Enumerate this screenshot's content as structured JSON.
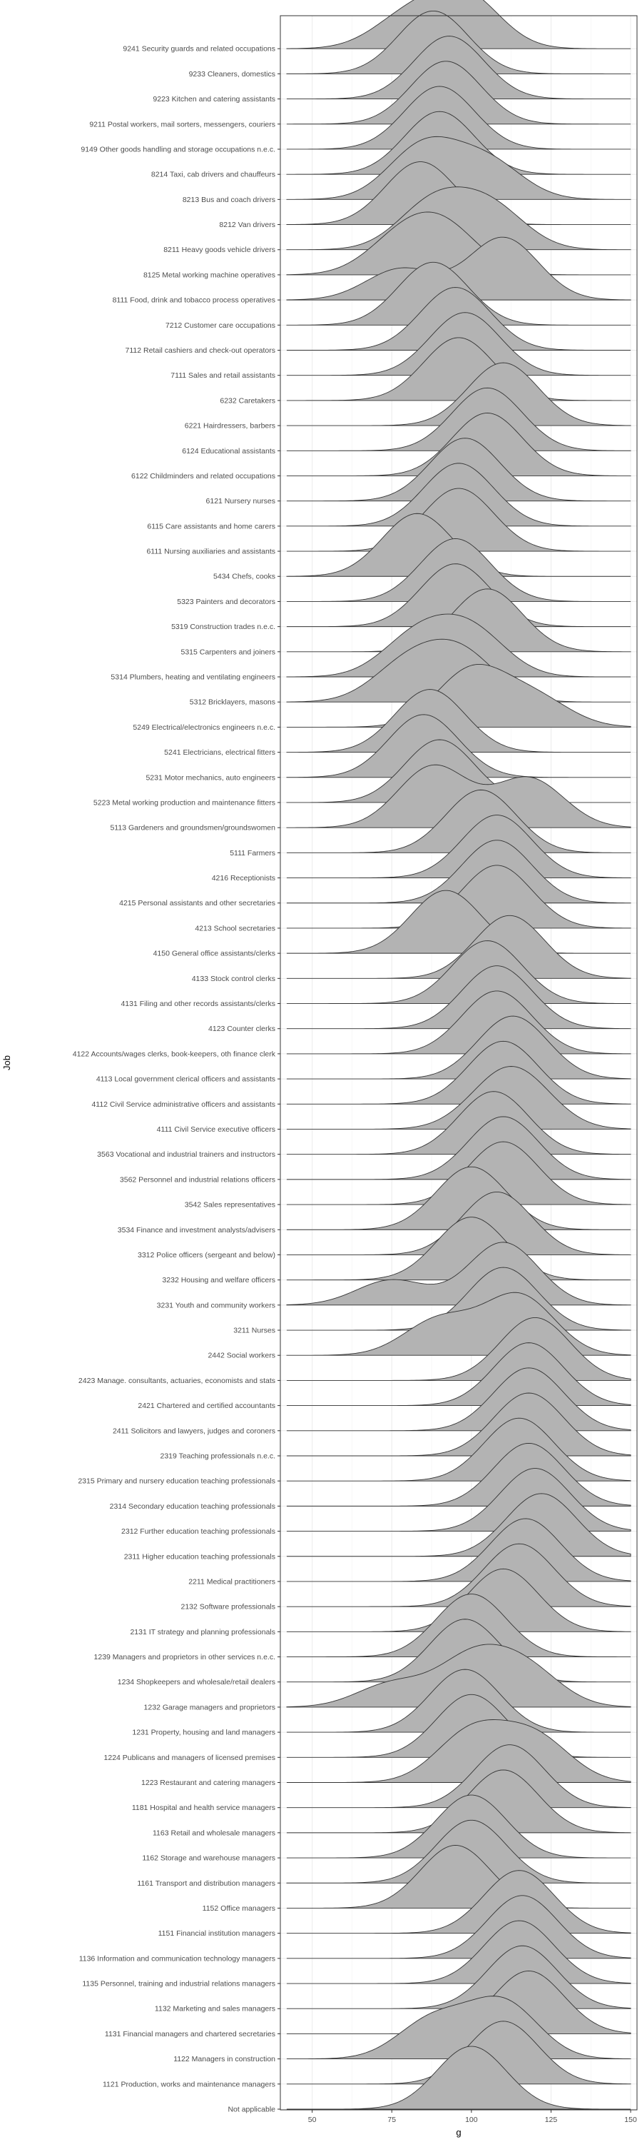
{
  "chart_data": {
    "type": "ridgeline",
    "xlabel": "g",
    "ylabel": "Job",
    "xlim": [
      40,
      152
    ],
    "x_ticks": [
      50,
      75,
      100,
      125,
      150
    ],
    "grid": true,
    "fill_color": "#b3b3b3",
    "line_color": "#333333",
    "categories": [
      "9241 Security guards and related occupations",
      "9233 Cleaners, domestics",
      "9223 Kitchen and catering assistants",
      "9211 Postal workers, mail sorters, messengers, couriers",
      "9149 Other goods handling and storage occupations n.e.c.",
      "8214 Taxi, cab drivers and chauffeurs",
      "8213 Bus and coach drivers",
      "8212 Van drivers",
      "8211 Heavy goods vehicle drivers",
      "8125 Metal working machine operatives",
      "8111 Food, drink and tobacco process operatives",
      "7212 Customer care occupations",
      "7112 Retail cashiers and check-out operators",
      "7111 Sales and retail assistants",
      "6232 Caretakers",
      "6221 Hairdressers, barbers",
      "6124 Educational assistants",
      "6122 Childminders and related occupations",
      "6121 Nursery nurses",
      "6115 Care assistants and home carers",
      "6111 Nursing auxiliaries and assistants",
      "5434 Chefs, cooks",
      "5323 Painters and decorators",
      "5319 Construction trades n.e.c.",
      "5315 Carpenters and joiners",
      "5314 Plumbers, heating and ventilating engineers",
      "5312 Bricklayers, masons",
      "5249 Electrical/electronics engineers n.e.c.",
      "5241 Electricians, electrical fitters",
      "5231 Motor mechanics, auto engineers",
      "5223 Metal working production and maintenance fitters",
      "5113 Gardeners and groundsmen/groundswomen",
      "5111 Farmers",
      "4216 Receptionists",
      "4215 Personal assistants and other secretaries",
      "4213 School secretaries",
      "4150 General office assistants/clerks",
      "4133 Stock control clerks",
      "4131 Filing and other records assistants/clerks",
      "4123 Counter clerks",
      "4122 Accounts/wages clerks, book-keepers, oth finance clerk",
      "4113 Local government clerical officers and assistants",
      "4112 Civil Service administrative officers and assistants",
      "4111 Civil Service executive officers",
      "3563 Vocational and industrial trainers and instructors",
      "3562 Personnel and industrial relations officers",
      "3542 Sales representatives",
      "3534 Finance and investment analysts/advisers",
      "3312 Police officers (sergeant and below)",
      "3232 Housing and welfare officers",
      "3231 Youth and community workers",
      "3211 Nurses",
      "2442 Social workers",
      "2423 Manage. consultants, actuaries, economists and stats",
      "2421 Chartered and certified accountants",
      "2411 Solicitors and lawyers, judges and coroners",
      "2319 Teaching professionals n.e.c.",
      "2315 Primary and nursery education teaching professionals",
      "2314 Secondary education teaching  professionals",
      "2312 Further education teaching professionals",
      "2311 Higher education teaching professionals",
      "2211 Medical practitioners",
      "2132 Software professionals",
      "2131 IT strategy and planning professionals",
      "1239 Managers and proprietors in other services n.e.c.",
      "1234 Shopkeepers and wholesale/retail dealers",
      "1232 Garage managers and proprietors",
      "1231 Property, housing and land managers",
      "1224 Publicans and managers of licensed premises",
      "1223 Restaurant and catering managers",
      "1181 Hospital and health service managers",
      "1163 Retail and wholesale managers",
      "1162 Storage and warehouse managers",
      "1161 Transport and distribution managers",
      "1152 Office managers",
      "1151 Financial institution managers",
      "1136 Information and communication technology managers",
      "1135 Personnel, training and industrial relations managers",
      "1132 Marketing and sales managers",
      "1131 Financial managers and chartered secretaries",
      "1122 Managers in construction",
      "1121 Production, works and maintenance managers",
      "Not applicable"
    ],
    "densities": [
      [
        [
          80,
          0.6
        ],
        [
          98,
          1.0
        ]
      ],
      [
        [
          88,
          1.0
        ]
      ],
      [
        [
          93,
          1.0
        ]
      ],
      [
        [
          92,
          1.0
        ]
      ],
      [
        [
          90,
          1.0
        ]
      ],
      [
        [
          90,
          1.0
        ]
      ],
      [
        [
          85,
          1.0
        ],
        [
          105,
          0.7
        ]
      ],
      [
        [
          84,
          1.0
        ]
      ],
      [
        [
          88,
          1.0
        ],
        [
          106,
          0.9
        ]
      ],
      [
        [
          78,
          0.8
        ],
        [
          92,
          1.0
        ]
      ],
      [
        [
          78,
          0.5
        ],
        [
          110,
          1.0
        ]
      ],
      [
        [
          88,
          1.0
        ]
      ],
      [
        [
          95,
          1.0
        ]
      ],
      [
        [
          98,
          1.0
        ]
      ],
      [
        [
          96,
          1.0
        ]
      ],
      [
        [
          110,
          1.0
        ]
      ],
      [
        [
          105,
          1.0
        ]
      ],
      [
        [
          105,
          1.0
        ]
      ],
      [
        [
          98,
          1.0
        ]
      ],
      [
        [
          96,
          1.0
        ]
      ],
      [
        [
          96,
          1.0
        ]
      ],
      [
        [
          83,
          1.0
        ]
      ],
      [
        [
          95,
          1.0
        ]
      ],
      [
        [
          95,
          1.0
        ]
      ],
      [
        [
          105,
          1.0
        ]
      ],
      [
        [
          83,
          0.9
        ],
        [
          100,
          1.0
        ]
      ],
      [
        [
          80,
          0.8
        ],
        [
          97,
          1.0
        ]
      ],
      [
        [
          100,
          1.0
        ],
        [
          120,
          0.5
        ]
      ],
      [
        [
          87,
          1.0
        ]
      ],
      [
        [
          85,
          1.0
        ]
      ],
      [
        [
          90,
          1.0
        ]
      ],
      [
        [
          88,
          1.0
        ],
        [
          118,
          0.8
        ]
      ],
      [
        [
          103,
          1.0
        ]
      ],
      [
        [
          108,
          1.0
        ]
      ],
      [
        [
          108,
          1.0
        ]
      ],
      [
        [
          108,
          1.0
        ]
      ],
      [
        [
          92,
          1.0
        ]
      ],
      [
        [
          112,
          1.0
        ]
      ],
      [
        [
          105,
          1.0
        ]
      ],
      [
        [
          108,
          1.0
        ]
      ],
      [
        [
          108,
          1.0
        ]
      ],
      [
        [
          113,
          1.0
        ]
      ],
      [
        [
          110,
          1.0
        ]
      ],
      [
        [
          108,
          0.8
        ],
        [
          116,
          1.0
        ]
      ],
      [
        [
          107,
          1.0
        ]
      ],
      [
        [
          110,
          1.0
        ]
      ],
      [
        [
          110,
          1.0
        ]
      ],
      [
        [
          100,
          1.0
        ]
      ],
      [
        [
          108,
          1.0
        ]
      ],
      [
        [
          100,
          1.0
        ]
      ],
      [
        [
          75,
          0.4
        ],
        [
          110,
          1.0
        ]
      ],
      [
        [
          110,
          1.0
        ]
      ],
      [
        [
          90,
          0.6
        ],
        [
          115,
          1.0
        ]
      ],
      [
        [
          120,
          1.0
        ]
      ],
      [
        [
          118,
          1.0
        ]
      ],
      [
        [
          118,
          1.0
        ]
      ],
      [
        [
          118,
          1.0
        ]
      ],
      [
        [
          115,
          1.0
        ]
      ],
      [
        [
          118,
          1.0
        ]
      ],
      [
        [
          120,
          1.0
        ]
      ],
      [
        [
          122,
          1.0
        ]
      ],
      [
        [
          117,
          1.0
        ]
      ],
      [
        [
          115,
          1.0
        ]
      ],
      [
        [
          110,
          1.0
        ]
      ],
      [
        [
          100,
          1.0
        ]
      ],
      [
        [
          98,
          1.0
        ]
      ],
      [
        [
          75,
          0.5
        ],
        [
          100,
          1.0
        ],
        [
          117,
          0.8
        ]
      ],
      [
        [
          98,
          1.0
        ]
      ],
      [
        [
          100,
          1.0
        ]
      ],
      [
        [
          100,
          0.9
        ],
        [
          120,
          0.8
        ]
      ],
      [
        [
          112,
          1.0
        ]
      ],
      [
        [
          110,
          1.0
        ]
      ],
      [
        [
          100,
          1.0
        ]
      ],
      [
        [
          100,
          1.0
        ]
      ],
      [
        [
          95,
          1.0
        ]
      ],
      [
        [
          115,
          1.0
        ]
      ],
      [
        [
          116,
          1.0
        ]
      ],
      [
        [
          115,
          1.0
        ]
      ],
      [
        [
          116,
          1.0
        ]
      ],
      [
        [
          118,
          1.0
        ]
      ],
      [
        [
          88,
          0.7
        ],
        [
          110,
          1.0
        ]
      ],
      [
        [
          110,
          1.0
        ]
      ],
      [
        [
          100,
          1.0
        ]
      ]
    ]
  }
}
